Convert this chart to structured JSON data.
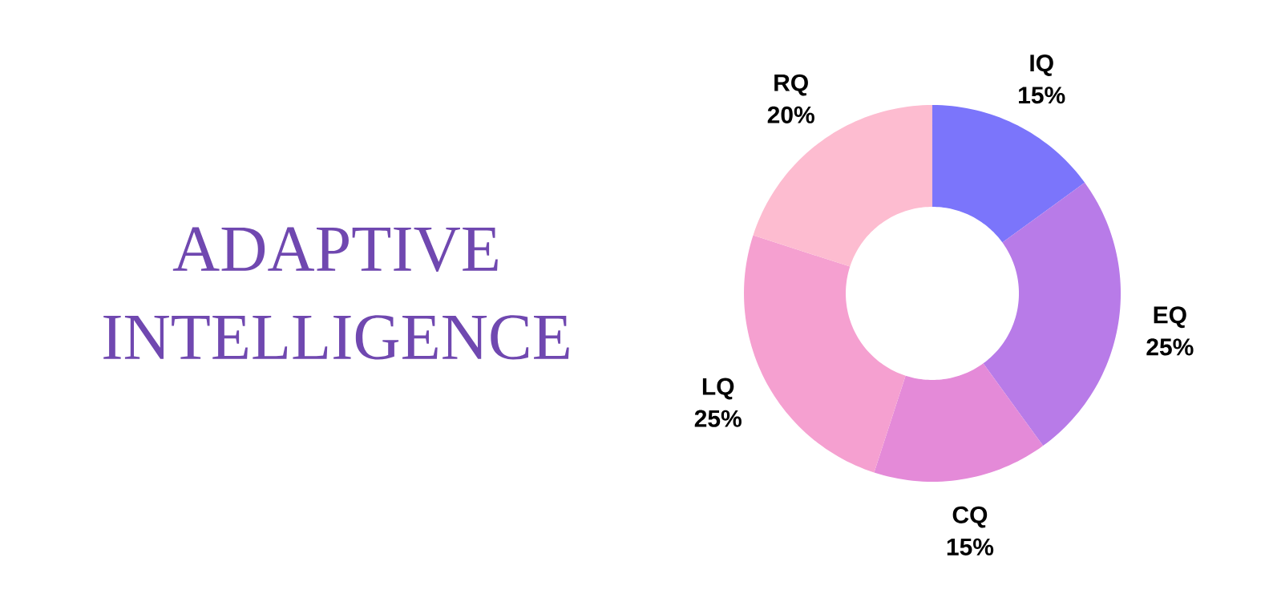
{
  "chart_data": {
    "type": "donut",
    "title": "ADAPTIVE INTELLIGENCE",
    "categories": [
      "IQ",
      "EQ",
      "CQ",
      "LQ",
      "RQ"
    ],
    "values": [
      15,
      25,
      15,
      25,
      20
    ],
    "value_labels": [
      "15%",
      "25%",
      "15%",
      "25%",
      "20%"
    ],
    "colors": [
      "#7b75fb",
      "#b87be8",
      "#e48ad8",
      "#f5a0d0",
      "#fdbcd0"
    ]
  }
}
